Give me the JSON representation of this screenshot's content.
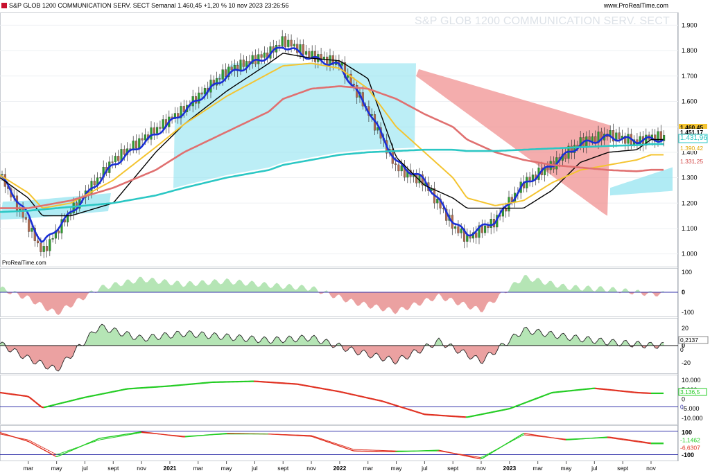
{
  "header": {
    "title": "S&P GLOB 1200 COMMUNICATION SERV. SECT Semanal 1.460,45 +1,20 % 10 nov 2023 23:26:56",
    "source": "www.ProRealTime.com",
    "watermark": "S&P GLOB 1200 COMMUNICATION SERV. SECT",
    "brand": "ProRealTime.com"
  },
  "colors": {
    "candle_up": "#2e9e2e",
    "candle_down": "#b36b50",
    "ema_fast": "#1a2fd6",
    "kijun": "#000000",
    "sma_mid": "#f4c430",
    "sma_slow": "#e07070",
    "sma_long": "#2bc7c4",
    "cloud_bull": "#8fe3f0",
    "cloud_bear": "#f08a8a",
    "osc_pos": "#a8e0a8",
    "osc_neg": "#e89090",
    "line_up": "#22cc22",
    "line_down": "#e03020",
    "level_line": "#3333aa"
  },
  "chart_data": [
    {
      "type": "line",
      "panel": "price",
      "title": "S&P GLOB 1200 COMMUNICATION SERV. SECT",
      "x_ticks": [
        "mar",
        "may",
        "jul",
        "sept",
        "nov",
        "2021",
        "mar",
        "may",
        "jul",
        "sept",
        "nov",
        "2022",
        "mar",
        "may",
        "jul",
        "sept",
        "nov",
        "2023",
        "mar",
        "may",
        "jul",
        "sept",
        "nov"
      ],
      "y_ticks": [
        "1.900",
        "1.800",
        "1.700",
        "1.600",
        "1.500",
        "1.400",
        "1.300",
        "1.200",
        "1.100",
        "1.000"
      ],
      "ylim": [
        950,
        1950
      ],
      "x": [
        "2020-01",
        "2020-03",
        "2020-04",
        "2020-06",
        "2020-09",
        "2020-12",
        "2021-02",
        "2021-05",
        "2021-08",
        "2021-09",
        "2021-11",
        "2022-01",
        "2022-03",
        "2022-05",
        "2022-07",
        "2022-09",
        "2022-10",
        "2022-12",
        "2023-02",
        "2023-04",
        "2023-06",
        "2023-08",
        "2023-10",
        "2023-11"
      ],
      "series": [
        {
          "role": "close",
          "values": [
            1310,
            1110,
            1005,
            1170,
            1370,
            1490,
            1570,
            1720,
            1790,
            1840,
            1780,
            1750,
            1560,
            1340,
            1280,
            1110,
            1060,
            1130,
            1280,
            1350,
            1440,
            1470,
            1440,
            1460
          ]
        },
        {
          "role": "ema",
          "values": [
            1310,
            1150,
            1040,
            1160,
            1350,
            1470,
            1560,
            1700,
            1780,
            1820,
            1770,
            1740,
            1570,
            1360,
            1290,
            1130,
            1075,
            1130,
            1270,
            1350,
            1430,
            1460,
            1445,
            1451
          ]
        },
        {
          "role": "kijun",
          "values": [
            1300,
            1220,
            1150,
            1150,
            1200,
            1400,
            1510,
            1640,
            1750,
            1790,
            1770,
            1760,
            1690,
            1380,
            1270,
            1220,
            1180,
            1180,
            1180,
            1250,
            1360,
            1400,
            1410,
            1450
          ]
        },
        {
          "role": "sma",
          "values": [
            1310,
            1240,
            1180,
            1200,
            1290,
            1420,
            1510,
            1620,
            1710,
            1740,
            1750,
            1730,
            1650,
            1500,
            1400,
            1300,
            1220,
            1190,
            1210,
            1280,
            1330,
            1350,
            1370,
            1390
          ]
        },
        {
          "role": "sma",
          "values": [
            1180,
            1180,
            1190,
            1210,
            1260,
            1330,
            1400,
            1480,
            1560,
            1610,
            1650,
            1660,
            1650,
            1610,
            1550,
            1500,
            1450,
            1400,
            1370,
            1350,
            1340,
            1330,
            1325,
            1331
          ]
        },
        {
          "role": "sma",
          "values": [
            1165,
            1170,
            1175,
            1185,
            1200,
            1230,
            1260,
            1300,
            1330,
            1350,
            1370,
            1390,
            1400,
            1405,
            1410,
            1410,
            1405,
            1405,
            1410,
            1415,
            1420,
            1425,
            1428,
            1432
          ]
        }
      ],
      "value_labels": [
        "1.460,45",
        "1.451,17",
        "1.431,96",
        "1.390,42",
        "1.331,25"
      ]
    },
    {
      "type": "area",
      "panel": "oscillator_1",
      "y_ticks": [
        "100",
        "0",
        "-100"
      ],
      "ylim": [
        -120,
        120
      ],
      "x": [
        "2020-01",
        "2020-03",
        "2020-05",
        "2020-08",
        "2020-11",
        "2021-02",
        "2021-05",
        "2021-08",
        "2021-11",
        "2022-02",
        "2022-05",
        "2022-08",
        "2022-11",
        "2023-02",
        "2023-05",
        "2023-08",
        "2023-11"
      ],
      "values": [
        20,
        -30,
        -105,
        20,
        65,
        40,
        55,
        35,
        20,
        -50,
        -95,
        -20,
        -90,
        75,
        25,
        15,
        -8
      ]
    },
    {
      "type": "area",
      "panel": "oscillator_2",
      "y_ticks": [
        "20",
        "0",
        "-20"
      ],
      "ylim": [
        -32,
        32
      ],
      "x": [
        "2020-01",
        "2020-03",
        "2020-05",
        "2020-08",
        "2020-11",
        "2021-02",
        "2021-05",
        "2021-08",
        "2021-11",
        "2022-02",
        "2022-05",
        "2022-08",
        "2022-11",
        "2023-02",
        "2023-05",
        "2023-08",
        "2023-11"
      ],
      "values": [
        2,
        -15,
        -28,
        22,
        8,
        14,
        10,
        6,
        9,
        -6,
        -18,
        5,
        -18,
        18,
        10,
        4,
        0.2137
      ],
      "value_label": "0,2137",
      "baseline_label": "0"
    },
    {
      "type": "line",
      "panel": "oscillator_3",
      "y_ticks": [
        "10.000",
        "5.000",
        "0",
        "-5.000",
        "-10.000"
      ],
      "ylim": [
        -13000,
        13000
      ],
      "x": [
        "2020-01",
        "2020-03",
        "2020-04",
        "2020-07",
        "2020-10",
        "2021-01",
        "2021-04",
        "2021-07",
        "2021-10",
        "2022-01",
        "2022-04",
        "2022-07",
        "2022-10",
        "2023-01",
        "2023-04",
        "2023-07",
        "2023-10",
        "2023-11"
      ],
      "values": [
        3500,
        1500,
        -4500,
        1000,
        5500,
        7000,
        9000,
        9500,
        8000,
        4000,
        -1000,
        -8000,
        -9500,
        -5000,
        3500,
        5800,
        3500,
        3136.5
      ],
      "value_label": "3.136,5",
      "baseline_label": "0"
    },
    {
      "type": "line",
      "panel": "oscillator_4",
      "y_ticks": [
        "100",
        "-100"
      ],
      "ylim": [
        -120,
        120
      ],
      "x": [
        "2020-01",
        "2020-03",
        "2020-05",
        "2020-08",
        "2020-11",
        "2021-02",
        "2021-05",
        "2021-08",
        "2021-11",
        "2022-02",
        "2022-05",
        "2022-08",
        "2022-11",
        "2023-02",
        "2023-05",
        "2023-08",
        "2023-11"
      ],
      "series": [
        {
          "role": "main",
          "values": [
            70,
            10,
            -95,
            30,
            75,
            40,
            65,
            60,
            45,
            -55,
            -60,
            -50,
            -110,
            65,
            20,
            40,
            -1.1462
          ]
        },
        {
          "role": "signal",
          "values": [
            60,
            20,
            -80,
            20,
            70,
            45,
            60,
            60,
            50,
            -45,
            -55,
            -55,
            -100,
            55,
            25,
            35,
            -6.6307
          ]
        }
      ],
      "value_labels": [
        "-1,1462",
        "-6,6307"
      ]
    }
  ]
}
